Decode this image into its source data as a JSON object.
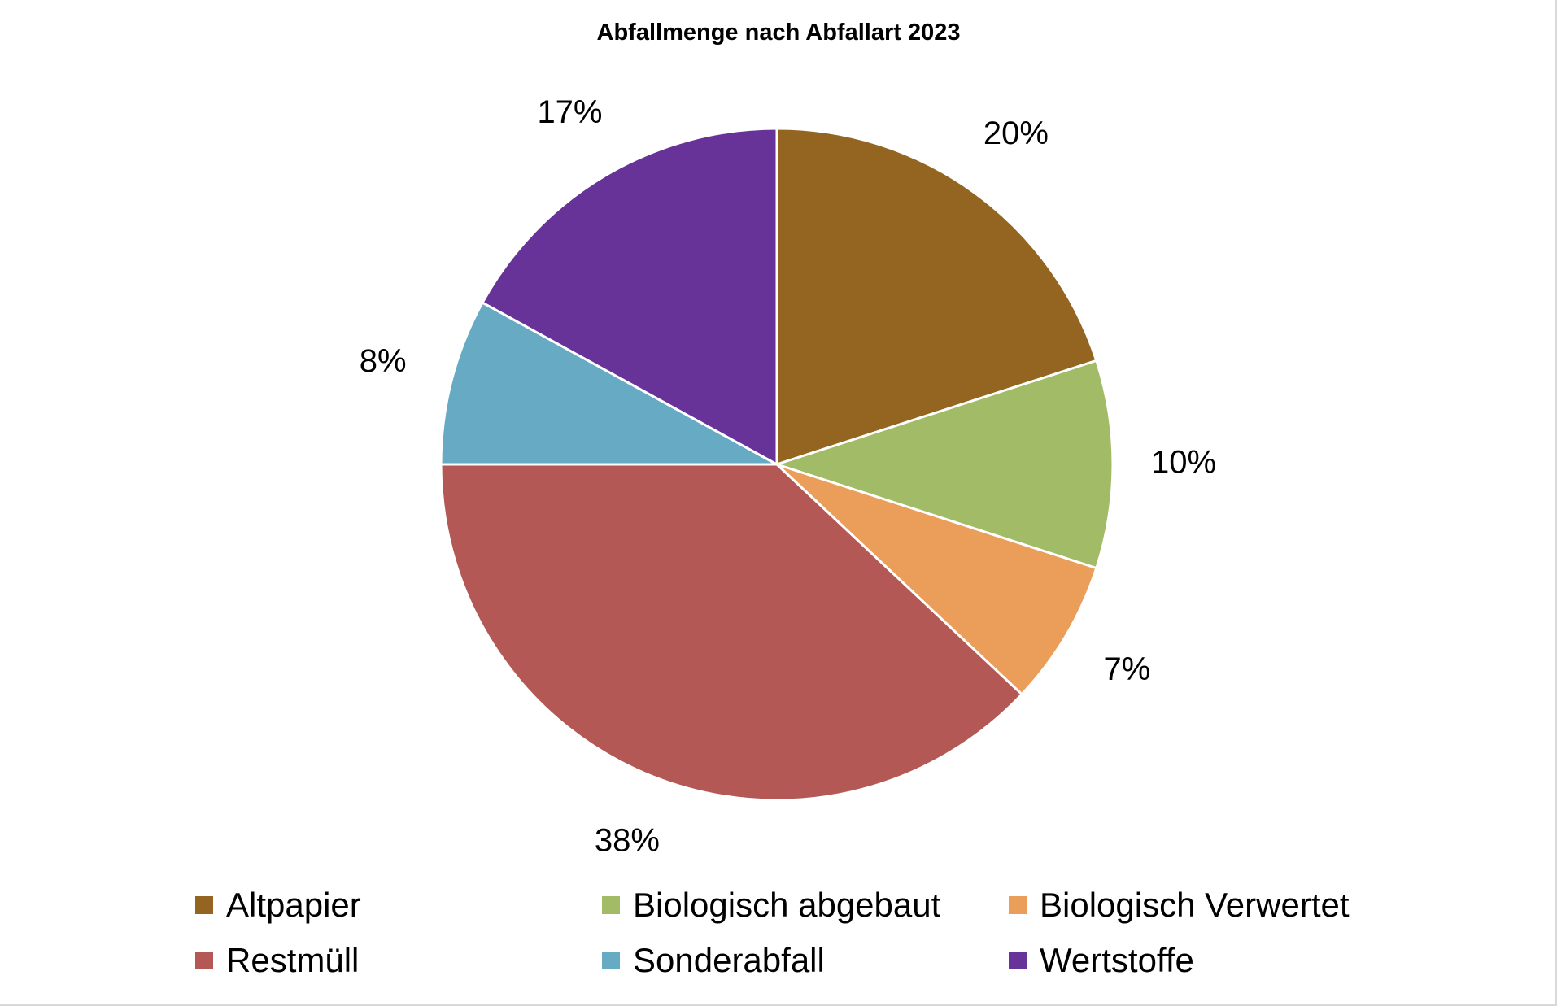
{
  "chart_data": {
    "type": "pie",
    "title": "Abfallmenge nach Abfallart 2023",
    "slices": [
      {
        "name": "Altpapier",
        "value": 20,
        "label": "20%",
        "color": "#936521"
      },
      {
        "name": "Biologisch abgebaut",
        "value": 10,
        "label": "10%",
        "color": "#a2bb67"
      },
      {
        "name": "Biologisch Verwertet",
        "value": 7,
        "label": "7%",
        "color": "#eb9d5a"
      },
      {
        "name": "Restmüll",
        "value": 38,
        "label": "38%",
        "color": "#b35855"
      },
      {
        "name": "Sonderabfall",
        "value": 8,
        "label": "8%",
        "color": "#66aac4"
      },
      {
        "name": "Wertstoffe",
        "value": 17,
        "label": "17%",
        "color": "#673398"
      }
    ],
    "legend_position": "bottom",
    "start_angle": "12 o'clock",
    "direction": "clockwise"
  }
}
